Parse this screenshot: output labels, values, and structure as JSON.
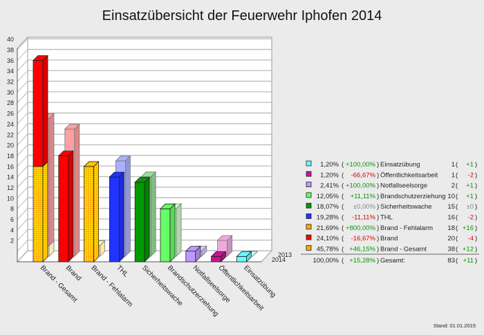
{
  "chart_data": {
    "type": "bar",
    "title": "Einsatzübersicht der Feuerwehr Iphofen 2014",
    "ylim": [
      0,
      40
    ],
    "yticks": [
      2,
      4,
      6,
      8,
      10,
      12,
      14,
      16,
      18,
      20,
      22,
      24,
      26,
      28,
      30,
      32,
      34,
      36,
      38,
      40
    ],
    "grid": true,
    "legend_placement": "right",
    "depth_labels": [
      "2013",
      "2014"
    ],
    "categories": [
      "Brand - Gesamt",
      "Brand",
      "Brand - Fehlalarm",
      "THL",
      "Sicherheitswache",
      "Brandschutzerziehung",
      "Notfallseelsorge",
      "Öffentlichkeitsarbeit",
      "Einsatzübung"
    ],
    "series": [
      {
        "name": "2014",
        "values": [
          38,
          20,
          18,
          16,
          15,
          10,
          2,
          1,
          1
        ]
      },
      {
        "name": "2013",
        "values": [
          26,
          24,
          2,
          18,
          15,
          9,
          1,
          3,
          0
        ]
      }
    ],
    "stack_note_brand_gesamt": {
      "2014": {
        "Brand - Fehlalarm": 18,
        "Brand": 20
      },
      "2013": {
        "Brand - Fehlalarm": 2,
        "Brand": 24
      }
    },
    "colors": [
      "#ffaa00",
      "#ff0000",
      "#ffaa00",
      "#2233ff",
      "#009900",
      "#66ff66",
      "#bb99ff",
      "#cc1199",
      "#66ffff"
    ],
    "colors_2013": [
      "#ffdd99",
      "#ffa0a0",
      "#ffdd99",
      "#aab0ff",
      "#99dd99",
      "#ccffcc",
      "#ddccff",
      "#eeaadd",
      "#ccffff"
    ],
    "legend": {
      "rows": [
        {
          "swatch": "#66ffff",
          "pct": "1,20%",
          "chg": "+100,00%",
          "chg_color": "#009900",
          "name": "Einsatzübung",
          "count": "1",
          "diff": "+1",
          "diff_color": "#009900"
        },
        {
          "swatch": "#cc1199",
          "pct": "1,20%",
          "chg": "-66,67%",
          "chg_color": "#dd0000",
          "name": "Öffentlichkeitsarbeit",
          "count": "1",
          "diff": "-2",
          "diff_color": "#dd0000"
        },
        {
          "swatch": "#bb99ff",
          "pct": "2,41%",
          "chg": "+100,00%",
          "chg_color": "#009900",
          "name": "Notfallseelsorge",
          "count": "2",
          "diff": "+1",
          "diff_color": "#009900"
        },
        {
          "swatch": "#66ff66",
          "pct": "12,05%",
          "chg": "+11,11%",
          "chg_color": "#009900",
          "name": "Brandschutzerziehung",
          "count": "10",
          "diff": "+1",
          "diff_color": "#009900"
        },
        {
          "swatch": "#009900",
          "pct": "18,07%",
          "chg": "±0,00%",
          "chg_color": "#888888",
          "name": "Sicherheitswache",
          "count": "15",
          "diff": "±0",
          "diff_color": "#888888"
        },
        {
          "swatch": "#2233ff",
          "pct": "19,28%",
          "chg": "-11,11%",
          "chg_color": "#dd0000",
          "name": "THL",
          "count": "16",
          "diff": "-2",
          "diff_color": "#dd0000"
        },
        {
          "swatch": "#ffaa00",
          "pct": "21,69%",
          "chg": "+800,00%",
          "chg_color": "#009900",
          "name": "Brand - Fehlalarm",
          "count": "18",
          "diff": "+16",
          "diff_color": "#009900"
        },
        {
          "swatch": "#ff0000",
          "pct": "24,10%",
          "chg": "-16,67%",
          "chg_color": "#dd0000",
          "name": "Brand",
          "count": "20",
          "diff": "-4",
          "diff_color": "#dd0000"
        },
        {
          "swatch": "#ffaa00",
          "pct": "45,78%",
          "chg": "+46,15%",
          "chg_color": "#009900",
          "name": "Brand - Gesamt",
          "count": "38",
          "diff": "+12",
          "diff_color": "#009900"
        }
      ],
      "total": {
        "pct": "100,00%",
        "chg": "+15,28%",
        "chg_color": "#009900",
        "name": "Gesamt:",
        "count": "83",
        "diff": "+11",
        "diff_color": "#009900"
      }
    },
    "footer": "Stand: 01.01.2015"
  }
}
